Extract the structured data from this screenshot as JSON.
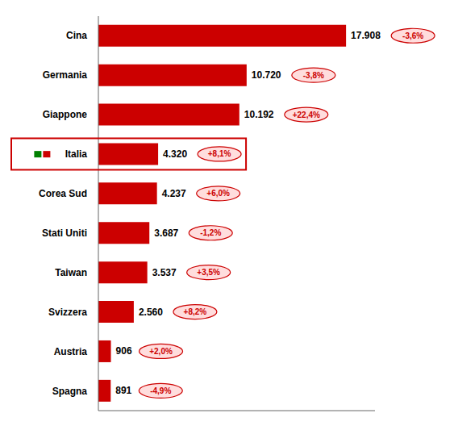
{
  "chart_data": {
    "type": "bar",
    "orientation": "horizontal",
    "categories": [
      "Cina",
      "Germania",
      "Giappone",
      "Italia",
      "Corea Sud",
      "Stati Uniti",
      "Taiwan",
      "Svizzera",
      "Austria",
      "Spagna"
    ],
    "values": [
      17908,
      10720,
      10192,
      4320,
      4237,
      3687,
      3537,
      2560,
      906,
      891
    ],
    "value_labels": [
      "17.908",
      "10.720",
      "10.192",
      "4.320",
      "4.237",
      "3.687",
      "3.537",
      "2.560",
      "906",
      "891"
    ],
    "data_labels": true,
    "changes": [
      "-3,6%",
      "-3,8%",
      "+22,4%",
      "+8,1%",
      "+6,0%",
      "-1,2%",
      "+3,5%",
      "+8,2%",
      "+2,0%",
      "-4,9%"
    ],
    "color": "#cc0000",
    "change_fill": "#ffdddd",
    "highlight": "Italia",
    "flag_colors": [
      "#008000",
      "#cc0000"
    ],
    "xlim": [
      0,
      20000
    ],
    "tick_labels": "y"
  }
}
